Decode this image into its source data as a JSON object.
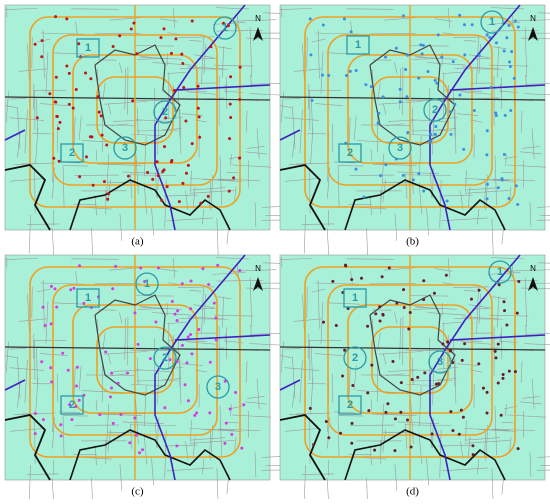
{
  "panels": [
    {
      "caption": "(a)",
      "north": "N",
      "circles": [
        "1",
        "2",
        "3"
      ],
      "squares": [
        "1",
        "2"
      ]
    },
    {
      "caption": "(b)",
      "north": "N",
      "circles": [
        "1",
        "2",
        "3"
      ],
      "squares": [
        "1",
        "2"
      ]
    },
    {
      "caption": "(c)",
      "north": "N",
      "circles": [
        "1",
        "2",
        "3"
      ],
      "squares": [
        "1",
        "2"
      ]
    },
    {
      "caption": "(d)",
      "north": "N",
      "circles": [
        "1",
        "2",
        "3"
      ],
      "squares": [
        "1",
        "2"
      ]
    }
  ]
}
